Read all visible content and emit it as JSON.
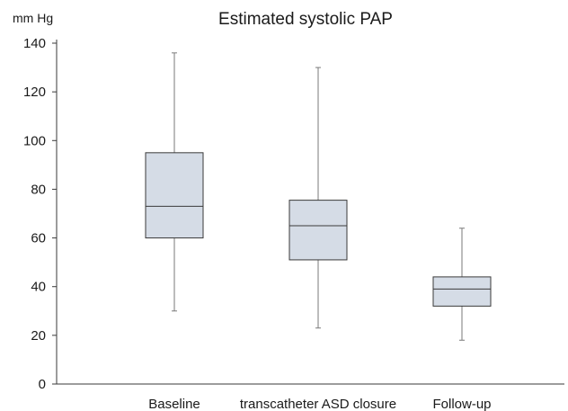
{
  "chart_data": {
    "type": "box",
    "title": "Estimated systolic PAP",
    "ylabel": "mm Hg",
    "xlabel": "",
    "ylim": [
      0,
      140
    ],
    "yticks": [
      0,
      20,
      40,
      60,
      80,
      100,
      120,
      140
    ],
    "grid": false,
    "legend": "none",
    "categories": [
      "Baseline",
      "transcatheter ASD closure",
      "Follow-up"
    ],
    "boxes": [
      {
        "min": 30,
        "q1": 60,
        "median": 73,
        "q3": 95,
        "max": 136
      },
      {
        "min": 23,
        "q1": 51,
        "median": 65,
        "q3": 75.5,
        "max": 130
      },
      {
        "min": 18,
        "q1": 32,
        "median": 39,
        "q3": 44,
        "max": 64
      }
    ],
    "colors": {
      "box_fill": "#d5dce6",
      "box_stroke": "#3a3a3a",
      "whisker": "#7a7a7a",
      "axis": "#3a3a3a"
    }
  }
}
